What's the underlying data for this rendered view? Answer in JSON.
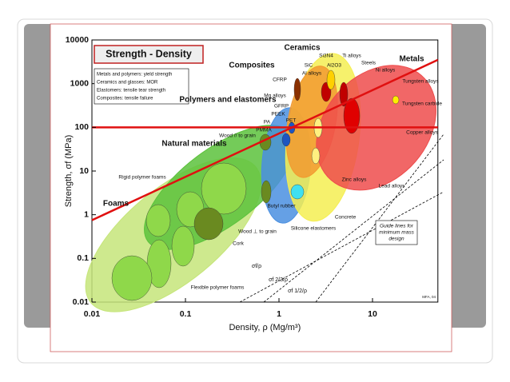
{
  "chart_data": {
    "type": "ashby",
    "title": "Strength - Density",
    "notes": [
      "Metals and polymers: yield strength",
      "Ceramics and glasses: MOR",
      "Elastomers: tensile tear strength",
      "Composites: tensile failure"
    ],
    "xlabel": "Density, ρ (Mg/m³)",
    "ylabel": "Strength, σf (MPa)",
    "log_x": true,
    "log_y": true,
    "xlim": [
      0.01,
      50
    ],
    "ylim": [
      0.01,
      10000
    ],
    "xticks": [
      0.01,
      0.1,
      1,
      10
    ],
    "yticks": [
      0.01,
      0.1,
      1,
      10,
      100,
      1000,
      10000
    ],
    "families": [
      {
        "name": "Foams",
        "color": "#c6e57a",
        "x": [
          0.011,
          0.5
        ],
        "y": [
          0.012,
          10
        ]
      },
      {
        "name": "Natural materials",
        "color": "#5cc23c",
        "x": [
          0.045,
          1.2
        ],
        "y": [
          0.3,
          60
        ]
      },
      {
        "name": "Polymers and elastomers",
        "color": "#4a8fe0",
        "x": [
          1.1,
          1.3
        ],
        "y": [
          0.9,
          200
        ]
      },
      {
        "name": "Ceramics",
        "color": "#f5ee52",
        "x": [
          2.3,
          3.8
        ],
        "y": [
          1,
          3500
        ]
      },
      {
        "name": "Composites",
        "color": "#f29a30",
        "x": [
          1.8,
          2.8
        ],
        "y": [
          10,
          1800
        ]
      },
      {
        "name": "Metals",
        "color": "#ee4c4c",
        "x": [
          4,
          30
        ],
        "y": [
          8,
          1200
        ]
      }
    ],
    "lines": [
      {
        "color": "#e01010",
        "x": [
          0.01,
          50
        ],
        "y": [
          0.75,
          3500
        ]
      },
      {
        "color": "#e01010",
        "x": [
          0.01,
          50
        ],
        "y": [
          100,
          100
        ]
      }
    ],
    "labels": [
      "Rigid polymer foams",
      "Flexible polymer foams",
      "Cork",
      "Wood ⊥ to grain",
      "Wood // to grain",
      "PMMA",
      "PA",
      "PEEK",
      "PET",
      "GFRP",
      "Mg alloys",
      "CFRP",
      "Al alloys",
      "SiC",
      "Si3N4",
      "Al2O3",
      "Ti alloys",
      "Steels",
      "Ni alloys",
      "Tungsten alloys",
      "Tungsten carbide",
      "Copper alloys",
      "Zinc alloys",
      "Lead alloys",
      "Concrete",
      "Butyl rubber",
      "Silicone elastomers"
    ],
    "guide_label": [
      "Guide lines for",
      "minimum mass",
      "design"
    ],
    "guide_formulas": [
      "σf/ρ",
      "σf 2/3/ρ",
      "σf 1/2/ρ"
    ],
    "credit": "MFA, 04"
  }
}
